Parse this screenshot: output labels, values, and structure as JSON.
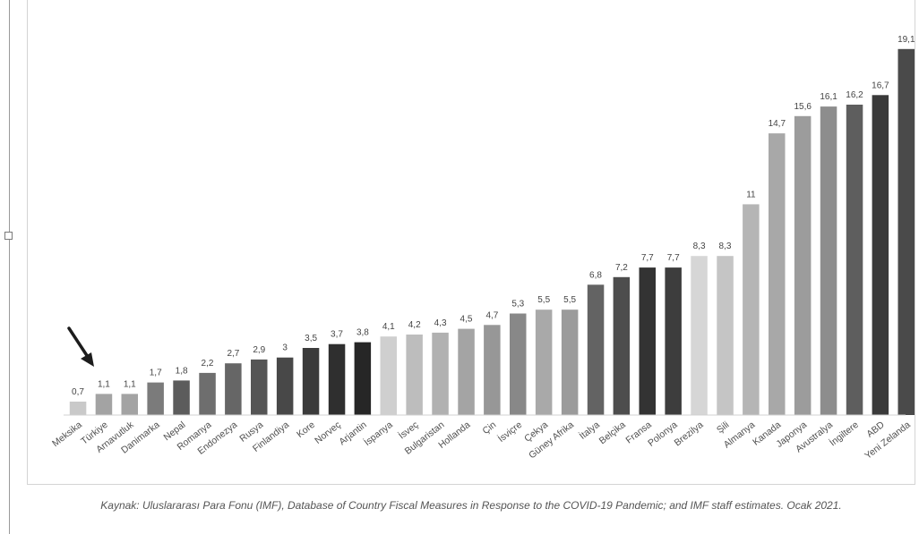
{
  "chart_data": {
    "type": "bar",
    "title": "",
    "xlabel": "",
    "ylabel": "",
    "ylim": [
      0,
      20
    ],
    "grid": false,
    "legend": "none",
    "categories": [
      "Meksika",
      "Türkiye",
      "Arnavutluk",
      "Danimarka",
      "Nepal",
      "Romanya",
      "Endonezya",
      "Rusya",
      "Finlandiya",
      "Kore",
      "Norveç",
      "Arjantin",
      "İspanya",
      "İsveç",
      "Bulgaristan",
      "Hollanda",
      "Çin",
      "İsviçre",
      "Çekya",
      "Güney Afrika",
      "İtalya",
      "Belçika",
      "Fransa",
      "Polonya",
      "Brezilya",
      "Şili",
      "Almanya",
      "Kanada",
      "Japonya",
      "Avustralya",
      "İngiltere",
      "ABD",
      "Yeni Zelanda"
    ],
    "values": [
      0.7,
      1.1,
      1.1,
      1.7,
      1.8,
      2.2,
      2.7,
      2.9,
      3,
      3.5,
      3.7,
      3.8,
      4.1,
      4.2,
      4.3,
      4.5,
      4.7,
      5.3,
      5.5,
      5.5,
      6.8,
      7.2,
      7.7,
      7.7,
      8.3,
      8.3,
      11,
      14.7,
      15.6,
      16.1,
      16.2,
      16.7,
      19.1
    ],
    "value_labels": [
      "0,7",
      "1,1",
      "1,1",
      "1,7",
      "1,8",
      "2,2",
      "2,7",
      "2,9",
      "3",
      "3,5",
      "3,7",
      "3,8",
      "4,1",
      "4,2",
      "4,3",
      "4,5",
      "4,7",
      "5,3",
      "5,5",
      "5,5",
      "6,8",
      "7,2",
      "7,7",
      "7,7",
      "8,3",
      "8,3",
      "11",
      "14,7",
      "15,6",
      "16,1",
      "16,2",
      "16,7",
      "19,1"
    ],
    "bar_colors": [
      "#c9c9c9",
      "#a3a3a3",
      "#a3a3a3",
      "#7b7b7b",
      "#5c5c5c",
      "#6e6e6e",
      "#666666",
      "#555555",
      "#484848",
      "#3b3b3b",
      "#2f2f2f",
      "#262626",
      "#cfcfcf",
      "#bdbdbd",
      "#b1b1b1",
      "#a4a4a4",
      "#979797",
      "#888888",
      "#a9a9a9",
      "#9b9b9b",
      "#636363",
      "#4d4d4d",
      "#333333",
      "#3d3d3d",
      "#d6d6d6",
      "#c5c5c5",
      "#b5b5b5",
      "#a8a8a8",
      "#9c9c9c",
      "#8d8d8d",
      "#5e5e5e",
      "#3a3a3a",
      "#4a4a4a"
    ],
    "annotation": {
      "type": "arrow",
      "points_to": "Türkiye",
      "color": "#1c1c1c"
    }
  },
  "source_note": "Kaynak: Uluslararası Para Fonu (IMF), Database of Country Fiscal Measures in Response to the COVID-19 Pandemic; and IMF staff estimates. Ocak 2021."
}
